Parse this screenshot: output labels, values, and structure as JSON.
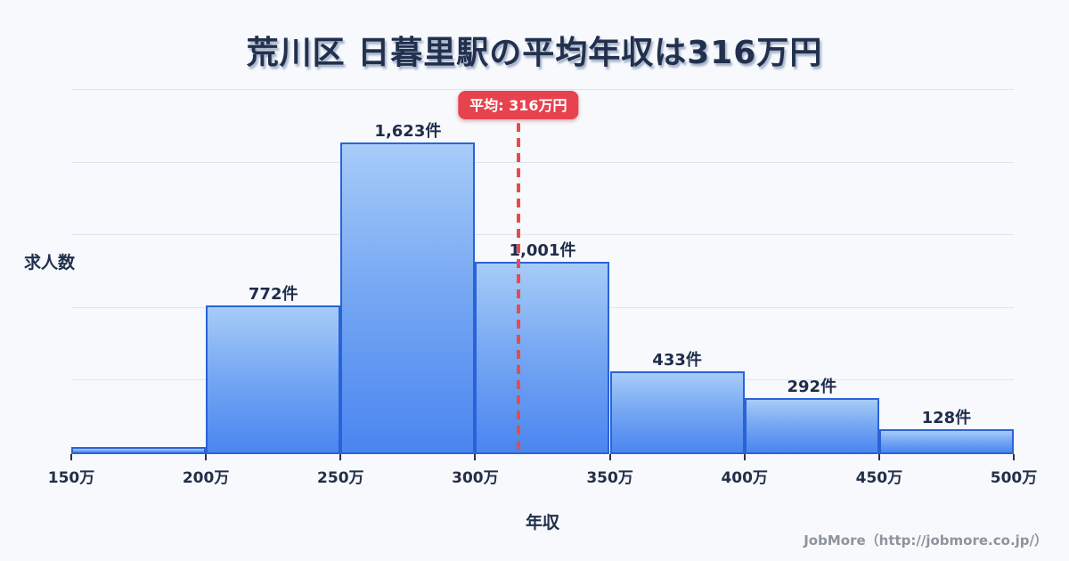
{
  "title": "荒川区 日暮里駅の平均年収は316万円",
  "badge": {
    "label": "平均: 316万円"
  },
  "axis": {
    "y_label": "求人数",
    "x_label": "年収"
  },
  "footer": {
    "credit": "JobMore（http://jobmore.co.jp/）"
  },
  "colors": {
    "background": "#f7f9fc",
    "title_navy": "#22304d",
    "bar_border": "#2a63d8",
    "bar_gradient_top": "#a7ccf8",
    "bar_gradient_bottom": "#4a86f0",
    "gridline": "#dfe5f0",
    "mean_red": "#e6434e",
    "footer_gray": "#8e949c"
  },
  "chart_data": {
    "type": "bar",
    "title": "荒川区 日暮里駅の平均年収は316万円",
    "xlabel": "年収",
    "ylabel": "求人数",
    "x_ticks": [
      "150万",
      "200万",
      "250万",
      "300万",
      "350万",
      "400万",
      "450万",
      "500万"
    ],
    "bin_edges_man": [
      150,
      200,
      250,
      300,
      350,
      400,
      450,
      500
    ],
    "values": [
      35,
      772,
      1623,
      1001,
      433,
      292,
      128
    ],
    "bar_labels": [
      "",
      "772件",
      "1,623件",
      "1,001件",
      "433件",
      "292件",
      "128件"
    ],
    "mean_man": 316,
    "mean_label": "平均: 316万円",
    "ylim": [
      0,
      1900
    ],
    "grid": true,
    "gridline_count": 6,
    "legend": "none"
  }
}
